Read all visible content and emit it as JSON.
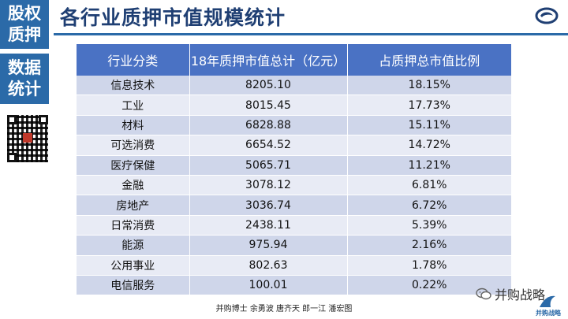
{
  "sidebar": {
    "top_line1": "股权",
    "top_line2": "质押",
    "mid_line1": "数据",
    "mid_line2": "统计"
  },
  "page": {
    "title": "各行业质押市值规模统计"
  },
  "table": {
    "headers": [
      "行业分类",
      "18年质押市值总计（亿元）",
      "占质押总市值比例"
    ],
    "rows": [
      [
        "信息技术",
        "8205.10",
        "18.15%"
      ],
      [
        "工业",
        "8015.45",
        "17.73%"
      ],
      [
        "材料",
        "6828.88",
        "15.11%"
      ],
      [
        "可选消费",
        "6654.52",
        "14.72%"
      ],
      [
        "医疗保健",
        "5065.71",
        "11.21%"
      ],
      [
        "金融",
        "3078.12",
        "6.81%"
      ],
      [
        "房地产",
        "3036.74",
        "6.72%"
      ],
      [
        "日常消费",
        "2438.11",
        "5.39%"
      ],
      [
        "能源",
        "975.94",
        "2.16%"
      ],
      [
        "公用事业",
        "802.63",
        "1.78%"
      ],
      [
        "电信服务",
        "100.01",
        "0.22%"
      ]
    ]
  },
  "footer": {
    "credits": "并购博士 余勇波 唐齐天 郎一江 潘宏图"
  },
  "watermark": {
    "wechat_label": "并购战略",
    "brand_label": "并购战略"
  },
  "colors": {
    "sidebar": "#2b6aa8",
    "title": "#1f3f73",
    "header": "#4a72c4",
    "row_odd": "#cfd6ea",
    "row_even": "#e8ebf5"
  }
}
